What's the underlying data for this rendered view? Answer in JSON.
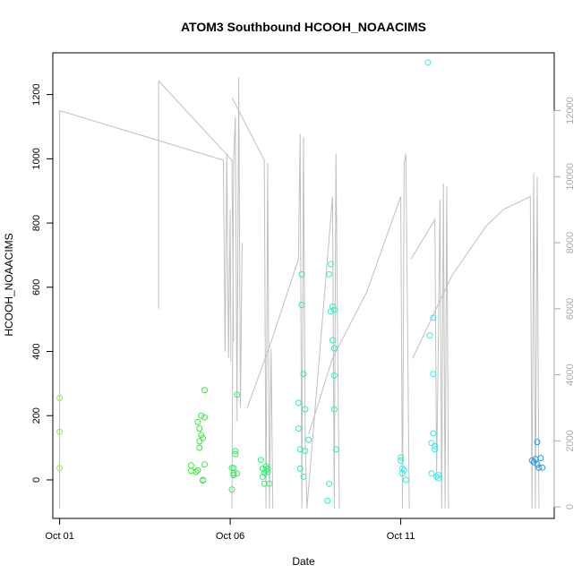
{
  "chart_data": {
    "type": "scatter",
    "title": "ATOM3 Southbound HCOOH_NOAACIMS",
    "xlabel": "Date",
    "ylabel": "HCOOH_NOAACIMS",
    "x_ticks": [
      "Oct 01",
      "Oct 06",
      "Oct 11"
    ],
    "x_tick_days": [
      1,
      6,
      11
    ],
    "x_range_days": [
      0.8,
      15.5
    ],
    "y_ticks": [
      0,
      200,
      400,
      600,
      800,
      1000,
      1200
    ],
    "ylim": [
      -120,
      1330
    ],
    "y2_ticks": [
      0,
      2000,
      4000,
      6000,
      8000,
      10000,
      12000
    ],
    "y2lim": [
      -350,
      13750
    ],
    "y2_label": "",
    "grid": false,
    "colors": {
      "altitude_line": "#c0c0c0",
      "axis": "#000000",
      "right_axis": "#aaaaaa"
    },
    "altitude_segments": [
      [
        [
          1.0,
          -60
        ],
        [
          1.0,
          12000
        ],
        [
          5.8,
          10500
        ],
        [
          5.85,
          4700
        ],
        [
          5.9,
          10700
        ],
        [
          5.95,
          4500
        ],
        [
          6.0,
          9000
        ],
        [
          6.02,
          4400
        ]
      ],
      [
        [
          3.9,
          6000
        ],
        [
          3.9,
          12900
        ],
        [
          6.05,
          10500
        ],
        [
          6.1,
          5000
        ]
      ],
      [
        [
          6.05,
          -50
        ],
        [
          6.1,
          10500
        ],
        [
          6.15,
          11800
        ],
        [
          6.2,
          2600
        ],
        [
          6.25,
          13000
        ],
        [
          6.3,
          3000
        ],
        [
          6.35,
          8000
        ]
      ],
      [
        [
          6.05,
          12400
        ],
        [
          7.0,
          10500
        ],
        [
          7.05,
          -50
        ],
        [
          7.1,
          10400
        ],
        [
          7.15,
          -50
        ],
        [
          7.2,
          4800
        ],
        [
          7.25,
          -50
        ]
      ],
      [
        [
          6.5,
          3000
        ],
        [
          7.2,
          5000
        ],
        [
          8.0,
          7500
        ],
        [
          8.05,
          11300
        ],
        [
          8.1,
          -50
        ],
        [
          8.15,
          11200
        ],
        [
          8.2,
          2000
        ],
        [
          8.25,
          -50
        ],
        [
          9.0,
          9400
        ],
        [
          9.05,
          -50
        ],
        [
          9.1,
          10700
        ],
        [
          9.15,
          5000
        ],
        [
          9.2,
          -50
        ]
      ],
      [
        [
          8.3,
          2200
        ],
        [
          9.0,
          4500
        ],
        [
          10.0,
          6500
        ],
        [
          11.0,
          9400
        ],
        [
          11.05,
          -50
        ],
        [
          11.1,
          10400
        ],
        [
          11.15,
          10700
        ],
        [
          11.2,
          5500
        ],
        [
          11.25,
          -50
        ]
      ],
      [
        [
          11.3,
          7500
        ],
        [
          12.0,
          8700
        ],
        [
          12.05,
          1000
        ],
        [
          12.1,
          4800
        ],
        [
          12.15,
          9300
        ],
        [
          12.2,
          -50
        ],
        [
          12.25,
          9800
        ],
        [
          12.3,
          -50
        ],
        [
          12.35,
          9700
        ],
        [
          12.4,
          -50
        ]
      ],
      [
        [
          11.35,
          4500
        ],
        [
          12.5,
          7000
        ],
        [
          13.5,
          8500
        ],
        [
          14.0,
          9000
        ],
        [
          14.8,
          9400
        ],
        [
          14.85,
          -50
        ],
        [
          14.9,
          10100
        ],
        [
          14.95,
          -50
        ],
        [
          15.0,
          10000
        ],
        [
          15.05,
          -50
        ]
      ]
    ],
    "color_scale_stops": [
      {
        "day": 1.0,
        "color": "#99ee33"
      },
      {
        "day": 5.0,
        "color": "#33ee33"
      },
      {
        "day": 7.5,
        "color": "#33ee88"
      },
      {
        "day": 9.0,
        "color": "#33eebb"
      },
      {
        "day": 11.0,
        "color": "#33eedd"
      },
      {
        "day": 12.5,
        "color": "#33eeee"
      },
      {
        "day": 15.0,
        "color": "#2299ee"
      }
    ],
    "points": [
      [
        1.0,
        255
      ],
      [
        1.0,
        150
      ],
      [
        1.0,
        37
      ],
      [
        4.85,
        45
      ],
      [
        4.85,
        28
      ],
      [
        5.0,
        25
      ],
      [
        5.05,
        30
      ],
      [
        5.05,
        180
      ],
      [
        5.1,
        160
      ],
      [
        5.1,
        120
      ],
      [
        5.1,
        100
      ],
      [
        5.15,
        140
      ],
      [
        5.15,
        200
      ],
      [
        5.2,
        130
      ],
      [
        5.2,
        0
      ],
      [
        5.2,
        -2
      ],
      [
        5.25,
        280
      ],
      [
        5.25,
        195
      ],
      [
        5.25,
        48
      ],
      [
        6.05,
        37
      ],
      [
        6.05,
        -30
      ],
      [
        6.1,
        37
      ],
      [
        6.1,
        20
      ],
      [
        6.1,
        15
      ],
      [
        6.15,
        80
      ],
      [
        6.15,
        90
      ],
      [
        6.2,
        265
      ],
      [
        6.2,
        20
      ],
      [
        6.9,
        62
      ],
      [
        6.95,
        35
      ],
      [
        6.95,
        10
      ],
      [
        7.0,
        -12
      ],
      [
        7.0,
        22
      ],
      [
        7.05,
        42
      ],
      [
        7.05,
        30
      ],
      [
        7.1,
        35
      ],
      [
        7.1,
        25
      ],
      [
        7.15,
        -12
      ],
      [
        8.0,
        240
      ],
      [
        8.0,
        160
      ],
      [
        8.05,
        95
      ],
      [
        8.05,
        35
      ],
      [
        8.1,
        640
      ],
      [
        8.1,
        545
      ],
      [
        8.15,
        330
      ],
      [
        8.15,
        10
      ],
      [
        8.2,
        220
      ],
      [
        8.2,
        90
      ],
      [
        8.3,
        125
      ],
      [
        8.85,
        -65
      ],
      [
        8.9,
        640
      ],
      [
        8.9,
        -12
      ],
      [
        8.95,
        672
      ],
      [
        8.95,
        525
      ],
      [
        9.0,
        540
      ],
      [
        9.0,
        435
      ],
      [
        9.05,
        530
      ],
      [
        9.05,
        410
      ],
      [
        9.05,
        325
      ],
      [
        9.05,
        220
      ],
      [
        9.1,
        95
      ],
      [
        11.0,
        70
      ],
      [
        11.0,
        60
      ],
      [
        11.05,
        35
      ],
      [
        11.05,
        20
      ],
      [
        11.1,
        30
      ],
      [
        11.15,
        0
      ],
      [
        11.8,
        1300
      ],
      [
        11.85,
        450
      ],
      [
        11.9,
        115
      ],
      [
        11.9,
        20
      ],
      [
        11.95,
        505
      ],
      [
        11.95,
        330
      ],
      [
        11.95,
        145
      ],
      [
        12.0,
        105
      ],
      [
        12.0,
        95
      ],
      [
        12.05,
        10
      ],
      [
        12.1,
        15
      ],
      [
        12.1,
        5
      ],
      [
        14.85,
        60
      ],
      [
        14.9,
        55
      ],
      [
        14.95,
        65
      ],
      [
        15.0,
        118
      ],
      [
        15.0,
        48
      ],
      [
        15.05,
        38
      ],
      [
        15.1,
        68
      ],
      [
        15.15,
        38
      ]
    ]
  }
}
